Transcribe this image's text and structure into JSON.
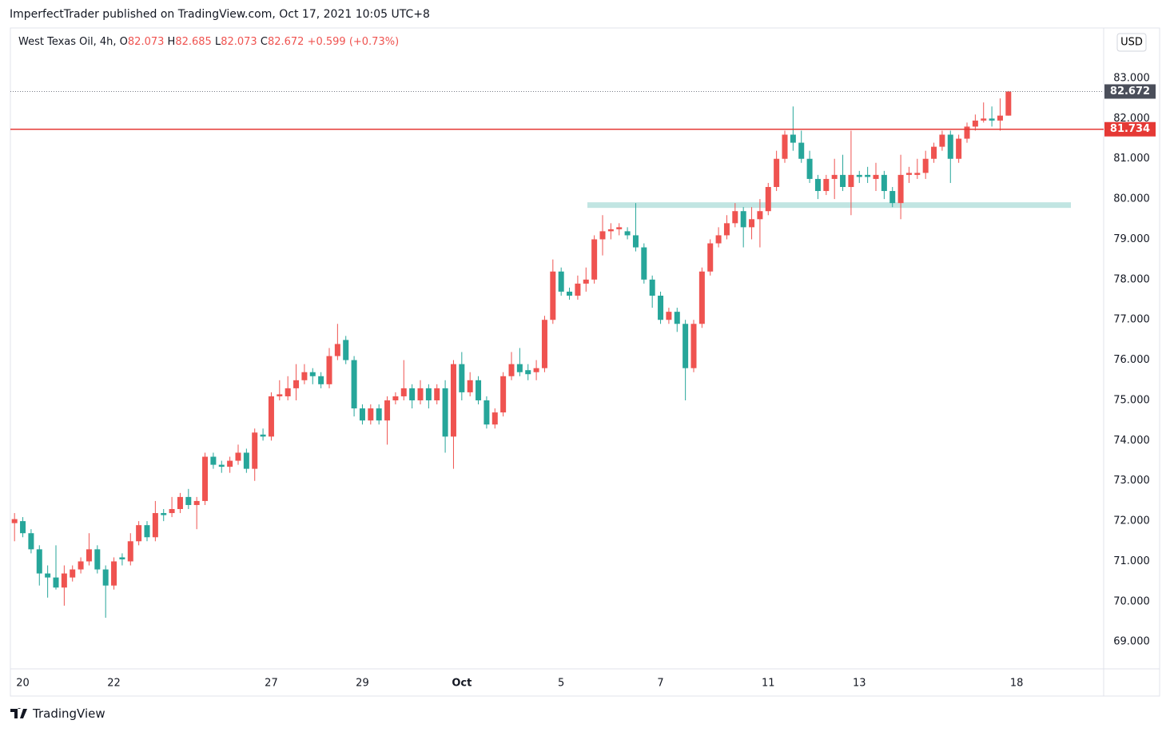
{
  "header": {
    "author_line": "ImperfectTrader published on TradingView.com, Oct 17, 2021 10:05 UTC+8"
  },
  "chart_data": {
    "type": "candlestick",
    "symbol": "West Texas Oil, 4h,",
    "legend": {
      "o": "O",
      "h": "H",
      "l": "L",
      "c": "C"
    },
    "change_label": "+0.599 (+0.73%)",
    "currency": "USD",
    "up_color": "#ef5350",
    "down_color": "#26a69a",
    "categories": [
      null,
      "20",
      null,
      null,
      null,
      null,
      null,
      null,
      null,
      null,
      null,
      null,
      "22",
      null,
      null,
      null,
      null,
      null,
      null,
      null,
      null,
      null,
      null,
      null,
      null,
      null,
      null,
      null,
      null,
      null,
      null,
      "27",
      null,
      null,
      null,
      null,
      null,
      null,
      null,
      null,
      null,
      null,
      "29",
      null,
      null,
      null,
      null,
      null,
      null,
      null,
      null,
      null,
      null,
      null,
      "Oct",
      null,
      null,
      null,
      null,
      null,
      null,
      null,
      null,
      null,
      null,
      null,
      "5",
      null,
      null,
      null,
      null,
      null,
      null,
      null,
      null,
      null,
      null,
      null,
      "7",
      null,
      null,
      null,
      null,
      null,
      null,
      null,
      null,
      null,
      null,
      null,
      null,
      "11",
      null,
      null,
      null,
      null,
      null,
      null,
      null,
      null,
      null,
      null,
      "13",
      null,
      null,
      null,
      null,
      null,
      null,
      null,
      null,
      null,
      null,
      null,
      null,
      null,
      null,
      null,
      null,
      null,
      null,
      "18",
      null,
      null,
      null,
      null,
      null,
      null,
      null,
      null,
      null,
      null
    ],
    "open": [
      71.95,
      72.0,
      71.7,
      71.3,
      70.7,
      70.6,
      70.35,
      70.6,
      70.8,
      71.0,
      71.3,
      70.8,
      70.4,
      71.1,
      71.0,
      71.5,
      71.9,
      71.6,
      72.2,
      72.2,
      72.3,
      72.6,
      72.4,
      72.5,
      73.6,
      73.4,
      73.35,
      73.5,
      73.7,
      73.3,
      74.15,
      74.1,
      75.1,
      75.1,
      75.3,
      75.5,
      75.7,
      75.6,
      75.4,
      76.1,
      76.5,
      76.0,
      74.8,
      74.5,
      74.8,
      74.5,
      75.0,
      75.1,
      75.3,
      75.0,
      75.3,
      75.0,
      75.3,
      74.1,
      75.9,
      75.2,
      75.5,
      75.0,
      74.4,
      74.7,
      75.6,
      75.9,
      75.75,
      75.7,
      75.8,
      77.0,
      78.2,
      77.7,
      77.6,
      77.9,
      78.0,
      79.0,
      79.2,
      79.25,
      79.2,
      79.1,
      78.8,
      78.0,
      77.6,
      77.0,
      77.2,
      76.9,
      75.8,
      76.9,
      78.2,
      78.9,
      79.1,
      79.4,
      79.7,
      79.3,
      79.5,
      79.7,
      80.3,
      81.0,
      81.6,
      81.4,
      81.0,
      80.5,
      80.2,
      80.5,
      80.6,
      80.3,
      80.6,
      80.6,
      80.5,
      80.6,
      80.2,
      79.9,
      80.6,
      80.6,
      80.65,
      81.0,
      81.3,
      81.6,
      81.0,
      81.5,
      81.8,
      81.95,
      82.0,
      81.95,
      82.073,
      null,
      null,
      null,
      null,
      null,
      null,
      null,
      null,
      null,
      null,
      null
    ],
    "high": [
      72.2,
      72.1,
      71.8,
      71.4,
      70.9,
      71.4,
      70.9,
      70.9,
      71.1,
      71.7,
      71.4,
      70.9,
      71.1,
      71.2,
      71.7,
      72.0,
      72.0,
      72.5,
      72.3,
      72.6,
      72.7,
      72.8,
      72.6,
      73.7,
      73.7,
      73.5,
      73.6,
      73.9,
      73.8,
      74.3,
      74.3,
      75.2,
      75.5,
      75.6,
      75.9,
      75.9,
      75.8,
      75.7,
      76.3,
      76.9,
      76.6,
      76.1,
      74.9,
      74.9,
      74.9,
      75.1,
      75.2,
      76.0,
      75.4,
      75.5,
      75.4,
      75.4,
      75.5,
      76.0,
      76.2,
      75.7,
      75.6,
      75.1,
      74.8,
      75.7,
      76.2,
      76.3,
      75.9,
      76.0,
      77.1,
      78.5,
      78.3,
      77.8,
      78.1,
      78.3,
      79.1,
      79.6,
      79.4,
      79.4,
      79.3,
      79.9,
      78.9,
      78.1,
      77.7,
      77.3,
      77.3,
      77.0,
      77.0,
      78.3,
      79.0,
      79.3,
      79.6,
      79.9,
      79.8,
      79.8,
      80.0,
      80.4,
      81.2,
      81.7,
      82.3,
      81.7,
      81.2,
      80.6,
      80.6,
      81.0,
      81.1,
      81.7,
      80.7,
      80.8,
      80.9,
      80.7,
      80.3,
      81.1,
      80.8,
      81.0,
      81.2,
      81.4,
      81.7,
      81.7,
      81.6,
      81.9,
      82.1,
      82.4,
      82.3,
      82.5,
      82.685,
      null,
      null,
      null,
      null,
      null,
      null,
      null,
      null,
      null,
      null,
      null
    ],
    "low": [
      71.5,
      71.6,
      71.2,
      70.4,
      70.1,
      70.3,
      69.9,
      70.5,
      70.7,
      70.9,
      70.7,
      69.6,
      70.3,
      70.9,
      70.9,
      71.4,
      71.5,
      71.5,
      72.0,
      72.1,
      72.2,
      72.3,
      71.8,
      72.4,
      73.3,
      73.2,
      73.2,
      73.4,
      73.2,
      73.0,
      74.0,
      74.0,
      75.0,
      75.0,
      75.0,
      75.4,
      75.4,
      75.3,
      75.3,
      76.0,
      75.9,
      74.6,
      74.4,
      74.4,
      74.4,
      73.9,
      74.9,
      75.0,
      74.8,
      74.9,
      74.8,
      74.9,
      73.7,
      73.3,
      75.0,
      75.1,
      74.9,
      74.3,
      74.3,
      74.6,
      75.5,
      75.6,
      75.5,
      75.5,
      75.7,
      76.9,
      77.6,
      77.5,
      77.5,
      77.7,
      77.9,
      78.6,
      79.0,
      79.1,
      79.0,
      78.7,
      77.9,
      77.3,
      76.9,
      76.9,
      76.7,
      75.0,
      75.7,
      76.8,
      78.1,
      78.8,
      79.0,
      79.3,
      78.8,
      79.0,
      78.8,
      79.6,
      80.2,
      80.9,
      81.2,
      80.9,
      80.4,
      80.0,
      80.1,
      80.0,
      80.2,
      79.6,
      80.4,
      80.4,
      80.2,
      80.0,
      79.8,
      79.5,
      80.4,
      80.5,
      80.5,
      80.9,
      81.2,
      80.4,
      80.9,
      81.4,
      81.7,
      81.9,
      81.8,
      81.7,
      82.073,
      null,
      null,
      null,
      null,
      null,
      null,
      null,
      null,
      null,
      null,
      null
    ],
    "close": [
      72.05,
      71.7,
      71.3,
      70.7,
      70.6,
      70.35,
      70.7,
      70.8,
      71.0,
      71.3,
      70.8,
      70.4,
      71.0,
      71.05,
      71.5,
      71.9,
      71.6,
      72.2,
      72.15,
      72.3,
      72.6,
      72.4,
      72.5,
      73.6,
      73.4,
      73.35,
      73.5,
      73.7,
      73.3,
      74.2,
      74.1,
      75.1,
      75.15,
      75.3,
      75.5,
      75.7,
      75.6,
      75.4,
      76.1,
      76.4,
      76.0,
      74.8,
      74.5,
      74.8,
      74.5,
      75.0,
      75.1,
      75.3,
      75.0,
      75.3,
      75.0,
      75.3,
      74.1,
      75.9,
      75.2,
      75.5,
      75.0,
      74.4,
      74.7,
      75.6,
      75.9,
      75.7,
      75.65,
      75.8,
      77.0,
      78.2,
      77.7,
      77.6,
      77.9,
      78.0,
      79.0,
      79.2,
      79.25,
      79.3,
      79.1,
      78.8,
      78.0,
      77.6,
      77.0,
      77.2,
      76.9,
      75.8,
      76.9,
      78.2,
      78.9,
      79.1,
      79.4,
      79.7,
      79.3,
      79.5,
      79.7,
      80.3,
      81.0,
      81.6,
      81.4,
      81.0,
      80.5,
      80.2,
      80.5,
      80.6,
      80.3,
      80.6,
      80.55,
      80.55,
      80.6,
      80.2,
      79.9,
      80.6,
      80.65,
      80.65,
      81.0,
      81.3,
      81.6,
      81.0,
      81.5,
      81.8,
      81.95,
      82.0,
      81.95,
      82.073,
      82.672,
      null,
      null,
      null,
      null,
      null,
      null,
      null,
      null,
      null,
      null,
      null
    ],
    "ylim": [
      68.33,
      84.25
    ],
    "yticks": [
      {
        "value": 69,
        "label": "69.000"
      },
      {
        "value": 70,
        "label": "70.000"
      },
      {
        "value": 71,
        "label": "71.000"
      },
      {
        "value": 72,
        "label": "72.000"
      },
      {
        "value": 73,
        "label": "73.000"
      },
      {
        "value": 74,
        "label": "74.000"
      },
      {
        "value": 75,
        "label": "75.000"
      },
      {
        "value": 76,
        "label": "76.000"
      },
      {
        "value": 77,
        "label": "77.000"
      },
      {
        "value": 78,
        "label": "78.000"
      },
      {
        "value": 79,
        "label": "79.000"
      },
      {
        "value": 80,
        "label": "80.000"
      },
      {
        "value": 81,
        "label": "81.000"
      },
      {
        "value": 82,
        "label": "82.000"
      },
      {
        "value": 83,
        "label": "83.000"
      }
    ],
    "grid": false,
    "lines": [
      {
        "value": 81.734,
        "color": "#e53935"
      }
    ],
    "zones": [
      {
        "value": 79.85,
        "color": "#b2dfdb"
      }
    ]
  },
  "footer": {
    "brand": "TradingView"
  }
}
